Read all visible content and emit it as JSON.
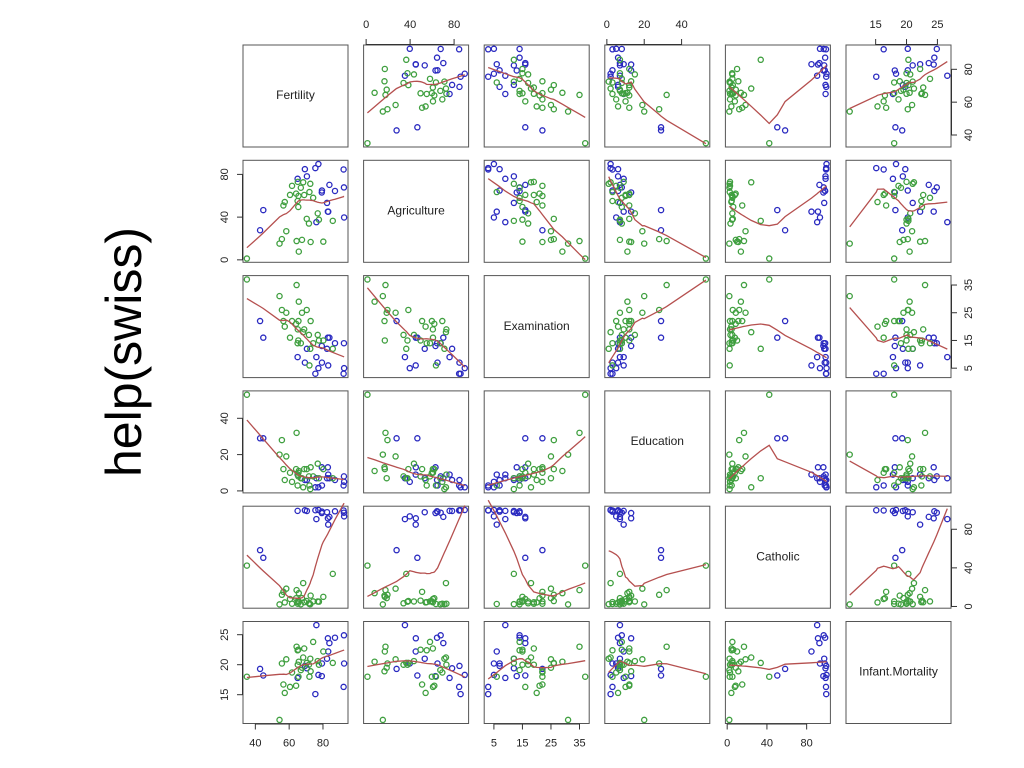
{
  "chart_data": {
    "type": "pairs",
    "title": "help(swiss)",
    "variables": [
      {
        "name": "Fertility",
        "lim": [
          32.7,
          94.8
        ],
        "ticks": [
          40,
          60,
          80
        ]
      },
      {
        "name": "Agriculture",
        "lim": [
          -2.3,
          93.2
        ],
        "ticks": [
          0,
          40,
          80
        ]
      },
      {
        "name": "Examination",
        "lim": [
          1.6,
          38.4
        ],
        "ticks": [
          5,
          15,
          25,
          35
        ]
      },
      {
        "name": "Education",
        "lim": [
          -1.1,
          55.1
        ],
        "ticks": [
          0,
          20,
          40
        ]
      },
      {
        "name": "Catholic",
        "lim": [
          -1.8,
          103.9
        ],
        "ticks": [
          0,
          40,
          80
        ]
      },
      {
        "name": "Infant.Mortality",
        "lim": [
          10.2,
          27.2
        ],
        "ticks": [
          15,
          20,
          25
        ]
      }
    ],
    "smoother_color": "#b5504f",
    "groups": [
      {
        "color": "#2a2ac0",
        "observations": [
          [
            83.1,
            45.1,
            6,
            9,
            84.84,
            22.2
          ],
          [
            92.5,
            39.7,
            5,
            5,
            93.4,
            20.2
          ],
          [
            76.1,
            35.3,
            9,
            7,
            90.57,
            26.6
          ],
          [
            83.8,
            70.2,
            16,
            7,
            92.85,
            23.6
          ],
          [
            92.4,
            67.8,
            14,
            8,
            97.16,
            24.9
          ],
          [
            82.4,
            53.3,
            12,
            7,
            97.67,
            21
          ],
          [
            82.9,
            45.2,
            16,
            13,
            91.38,
            24.4
          ],
          [
            87.1,
            64.5,
            14,
            6,
            98.61,
            24.5
          ],
          [
            75.5,
            85.9,
            3,
            2,
            99.71,
            15.1
          ],
          [
            69.3,
            84.9,
            7,
            6,
            99.68,
            19.8
          ],
          [
            77.3,
            89.7,
            5,
            2,
            100,
            18.3
          ],
          [
            70.5,
            78.2,
            12,
            6,
            98.96,
            19.4
          ],
          [
            79.4,
            64.9,
            7,
            3,
            98.22,
            20.2
          ],
          [
            65,
            75.9,
            9,
            9,
            99.06,
            17.8
          ],
          [
            92.2,
            84.6,
            3,
            3,
            99.46,
            16.3
          ],
          [
            79.3,
            63.1,
            13,
            13,
            96.83,
            18.1
          ],
          [
            44.7,
            46.6,
            16,
            29,
            50.43,
            18.2
          ],
          [
            42.8,
            27.7,
            22,
            29,
            58.33,
            19.3
          ]
        ]
      },
      {
        "color": "#3f9f3f",
        "observations": [
          [
            80.2,
            17,
            15,
            12,
            9.96,
            22.2
          ],
          [
            85.8,
            36.5,
            12,
            7,
            33.77,
            20.3
          ],
          [
            76.9,
            43.5,
            17,
            15,
            5.16,
            20.6
          ],
          [
            64.1,
            62,
            21,
            12,
            8.52,
            16.5
          ],
          [
            66.9,
            67.5,
            14,
            7,
            2.27,
            19.1
          ],
          [
            68.9,
            60.7,
            19,
            12,
            4.43,
            22.7
          ],
          [
            61.7,
            69.3,
            22,
            5,
            2.82,
            18.7
          ],
          [
            68.3,
            72.6,
            18,
            2,
            24.2,
            21.2
          ],
          [
            71.7,
            34,
            17,
            8,
            3.3,
            20
          ],
          [
            55.7,
            19.4,
            26,
            28,
            12.11,
            20.2
          ],
          [
            54.3,
            15.2,
            31,
            20,
            2.15,
            10.8
          ],
          [
            65.1,
            73,
            19,
            9,
            2.84,
            20
          ],
          [
            65.5,
            59.8,
            22,
            10,
            5.23,
            18
          ],
          [
            65,
            55.1,
            14,
            3,
            4.52,
            22.4
          ],
          [
            56.6,
            50.9,
            22,
            12,
            15.14,
            16.7
          ],
          [
            57.4,
            54.1,
            20,
            6,
            4.2,
            15.3
          ],
          [
            72.5,
            71.2,
            12,
            1,
            2.4,
            21
          ],
          [
            74.2,
            58.1,
            14,
            8,
            5.23,
            23.8
          ],
          [
            72,
            63.5,
            6,
            3,
            2.56,
            18
          ],
          [
            60.5,
            60.8,
            16,
            10,
            7.72,
            16.3
          ],
          [
            58.3,
            26.8,
            25,
            19,
            18.46,
            20.9
          ],
          [
            65.4,
            49.5,
            15,
            8,
            6.1,
            22.5
          ],
          [
            70.4,
            38.4,
            26,
            12,
            5.62,
            20.3
          ],
          [
            65.7,
            7.7,
            29,
            11,
            13.79,
            20.5
          ],
          [
            72.7,
            16.7,
            22,
            13,
            11.22,
            18.9
          ],
          [
            64.4,
            17.6,
            35,
            32,
            16.92,
            23
          ],
          [
            77.6,
            37.6,
            15,
            7,
            4.97,
            20
          ],
          [
            67.6,
            18.7,
            25,
            7,
            8.65,
            19.5
          ],
          [
            35,
            1.2,
            37,
            53,
            42.34,
            18
          ]
        ]
      }
    ]
  }
}
